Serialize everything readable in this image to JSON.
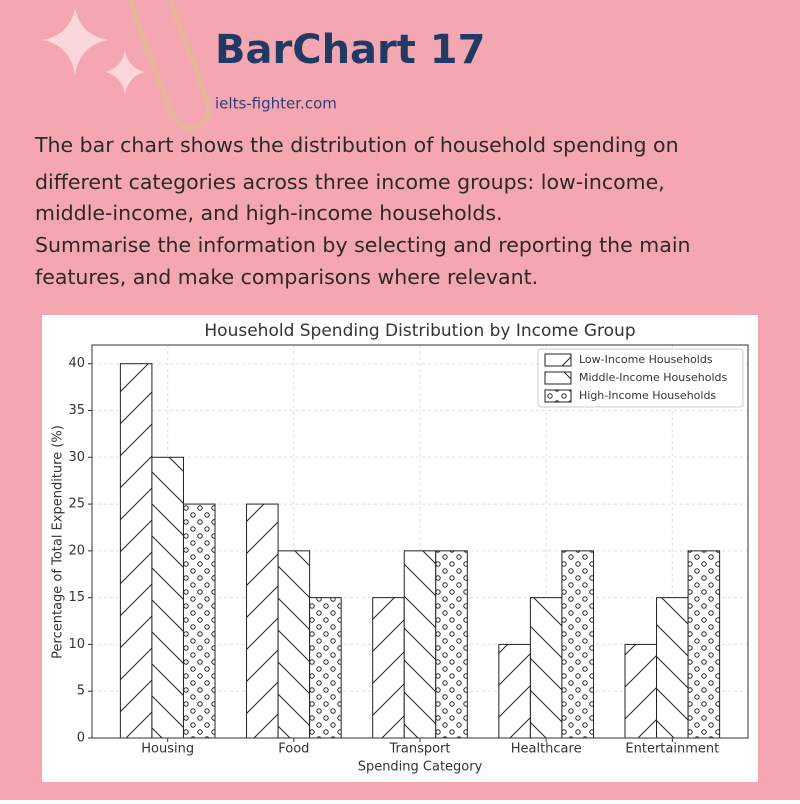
{
  "header": {
    "title": "BarChart 17",
    "site": "ielts-fighter.com",
    "prompt": [
      "The bar chart shows the distribution of household spending on",
      "different categories across three income groups: low-income,",
      "middle-income, and high-income households.",
      "Summarise the information by selecting and reporting the main",
      "features, and make comparisons where relevant."
    ]
  },
  "chart_data": {
    "type": "bar",
    "title": "Household Spending Distribution by Income Group",
    "x_label": "Spending Category",
    "y_label": "Percentage of Total Expenditure (%)",
    "categories": [
      "Housing",
      "Food",
      "Transport",
      "Healthcare",
      "Entertainment"
    ],
    "series": [
      {
        "name": "Low-Income Households",
        "color": "#ffffff",
        "hatch": "/",
        "values": [
          40,
          25,
          15,
          10,
          10
        ]
      },
      {
        "name": "Middle-Income Households",
        "color": "#ffffff",
        "hatch": "\\",
        "values": [
          30,
          20,
          20,
          15,
          15
        ]
      },
      {
        "name": "High-Income Households",
        "color": "#ffffff",
        "hatch": "o",
        "values": [
          25,
          15,
          20,
          20,
          20
        ]
      }
    ],
    "ylim": [
      0,
      42
    ],
    "yticks": [
      0,
      5,
      10,
      15,
      20,
      25,
      30,
      35,
      40
    ],
    "grid": true,
    "legend": "upper right"
  }
}
